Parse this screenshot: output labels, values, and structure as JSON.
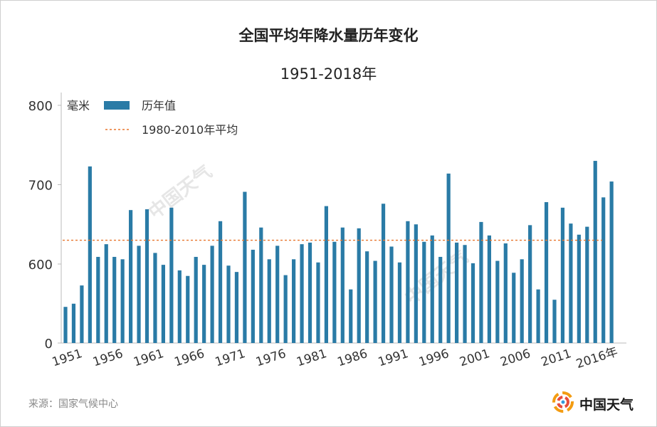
{
  "chart_data": {
    "type": "bar",
    "title": "全国平均年降水量历年变化",
    "subtitle": "1951-2018年",
    "ylabel": "毫米",
    "ylim": [
      0,
      800
    ],
    "yticks": [
      0,
      600,
      700,
      800
    ],
    "x_tick_labels": [
      "1951",
      "1956",
      "1961",
      "1966",
      "1971",
      "1976",
      "1981",
      "1986",
      "1991",
      "1996",
      "2001",
      "2006",
      "2011",
      "2016年"
    ],
    "x": [
      1951,
      1952,
      1953,
      1954,
      1955,
      1956,
      1957,
      1958,
      1959,
      1960,
      1961,
      1962,
      1963,
      1964,
      1965,
      1966,
      1967,
      1968,
      1969,
      1970,
      1971,
      1972,
      1973,
      1974,
      1975,
      1976,
      1977,
      1978,
      1979,
      1980,
      1981,
      1982,
      1983,
      1984,
      1985,
      1986,
      1987,
      1988,
      1989,
      1990,
      1991,
      1992,
      1993,
      1994,
      1995,
      1996,
      1997,
      1998,
      1999,
      2000,
      2001,
      2002,
      2003,
      2004,
      2005,
      2006,
      2007,
      2008,
      2009,
      2010,
      2011,
      2012,
      2013,
      2014,
      2015,
      2016,
      2017,
      2018
    ],
    "series": [
      {
        "name": "历年值",
        "color": "#2a7ba6",
        "values": [
          546,
          550,
          573,
          723,
          609,
          625,
          609,
          606,
          668,
          623,
          669,
          614,
          599,
          671,
          592,
          585,
          609,
          599,
          623,
          654,
          598,
          590,
          691,
          618,
          646,
          606,
          623,
          586,
          606,
          625,
          627,
          602,
          673,
          628,
          646,
          568,
          645,
          616,
          604,
          676,
          622,
          602,
          654,
          650,
          628,
          636,
          609,
          714,
          627,
          624,
          601,
          653,
          636,
          604,
          626,
          589,
          606,
          649,
          568,
          678,
          555,
          671,
          651,
          637,
          647,
          730,
          684,
          704
        ]
      }
    ],
    "reference_line": {
      "name": "1980-2010年平均",
      "value": 630,
      "color": "#e8772e"
    },
    "grid": false,
    "legend_position": "top-left"
  },
  "footer": {
    "source": "来源：国家气候中心",
    "logo_text": "中国天气",
    "watermark": "中国天气"
  }
}
